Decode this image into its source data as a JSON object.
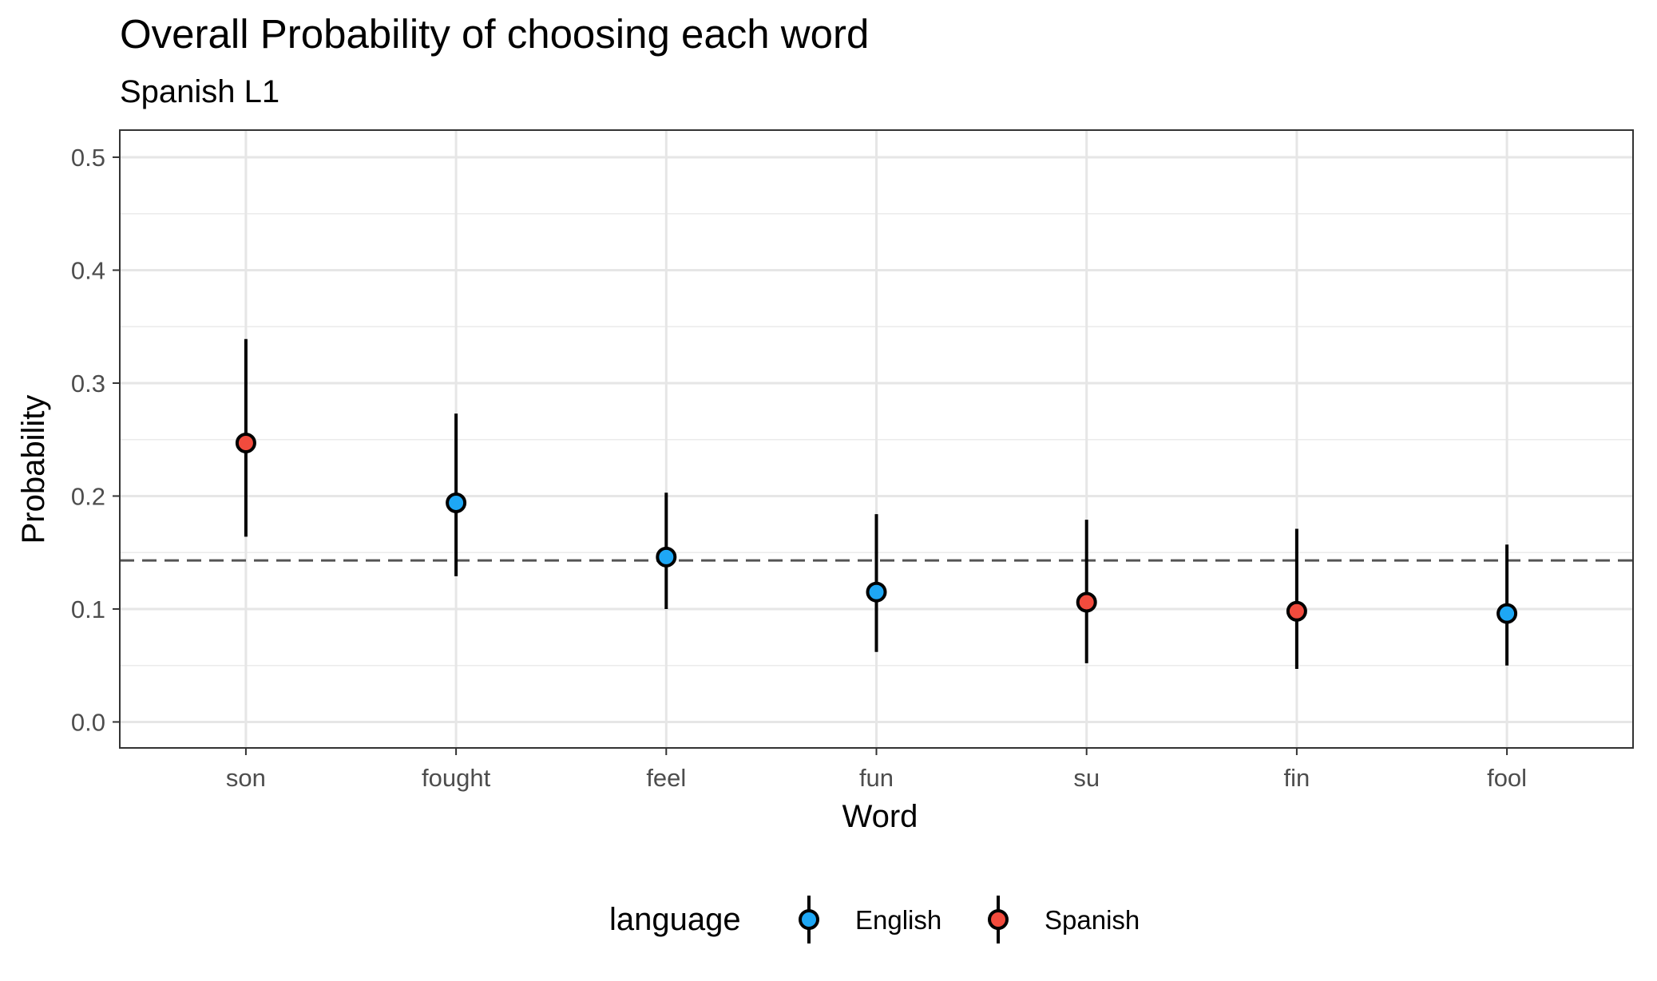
{
  "chart_data": {
    "type": "scatter",
    "title": "Overall Probability of choosing each word",
    "subtitle": "Spanish L1",
    "xlabel": "Word",
    "ylabel": "Probability",
    "ylim": [
      -0.023,
      0.524
    ],
    "yticks": [
      "0.0",
      "0.1",
      "0.2",
      "0.3",
      "0.4",
      "0.5"
    ],
    "ytick_values": [
      0,
      0.1,
      0.2,
      0.3,
      0.4,
      0.5
    ],
    "categories": [
      "son",
      "fought",
      "feel",
      "fun",
      "su",
      "fin",
      "fool"
    ],
    "points": [
      {
        "word": "son",
        "language": "Spanish",
        "y": 0.247,
        "lower": 0.164,
        "upper": 0.339
      },
      {
        "word": "fought",
        "language": "English",
        "y": 0.194,
        "lower": 0.129,
        "upper": 0.273
      },
      {
        "word": "feel",
        "language": "English",
        "y": 0.146,
        "lower": 0.1,
        "upper": 0.203
      },
      {
        "word": "fun",
        "language": "English",
        "y": 0.115,
        "lower": 0.062,
        "upper": 0.184
      },
      {
        "word": "su",
        "language": "Spanish",
        "y": 0.106,
        "lower": 0.052,
        "upper": 0.179
      },
      {
        "word": "fin",
        "language": "Spanish",
        "y": 0.098,
        "lower": 0.047,
        "upper": 0.171
      },
      {
        "word": "fool",
        "language": "English",
        "y": 0.096,
        "lower": 0.05,
        "upper": 0.157
      }
    ],
    "reference_line": 0.143,
    "grid": true,
    "legend": {
      "title": "language",
      "position": "bottom",
      "entries": [
        {
          "label": "English",
          "color": "#1ea7f5"
        },
        {
          "label": "Spanish",
          "color": "#f24b3d"
        }
      ]
    }
  }
}
